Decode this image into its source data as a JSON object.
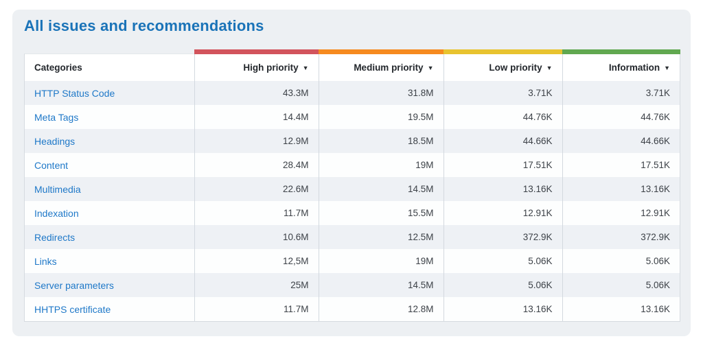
{
  "page": {
    "title": "All issues and recommendations"
  },
  "table": {
    "columns": [
      {
        "label": "Categories",
        "sortable": false,
        "color": null
      },
      {
        "label": "High priority",
        "sortable": true,
        "color": "#d2545c"
      },
      {
        "label": "Medium priority",
        "sortable": true,
        "color": "#f68a1f"
      },
      {
        "label": "Low priority",
        "sortable": true,
        "color": "#e8c32f"
      },
      {
        "label": "Information",
        "sortable": true,
        "color": "#61a850"
      }
    ],
    "sort_icon": "▼",
    "rows": [
      {
        "category": "HTTP Status Code",
        "values": [
          "43.3M",
          "31.8M",
          "3.71K",
          "3.71K"
        ]
      },
      {
        "category": "Meta Tags",
        "values": [
          "14.4M",
          "19.5M",
          "44.76K",
          "44.76K"
        ]
      },
      {
        "category": "Headings",
        "values": [
          "12.9M",
          "18.5M",
          "44.66K",
          "44.66K"
        ]
      },
      {
        "category": "Content",
        "values": [
          "28.4M",
          "19M",
          "17.51K",
          "17.51K"
        ]
      },
      {
        "category": "Multimedia",
        "values": [
          "22.6M",
          "14.5M",
          "13.16K",
          "13.16K"
        ]
      },
      {
        "category": "Indexation",
        "values": [
          "11.7M",
          "15.5M",
          "12.91K",
          "12.91K"
        ]
      },
      {
        "category": "Redirects",
        "values": [
          "10.6M",
          "12.5M",
          "372.9K",
          "372.9K"
        ]
      },
      {
        "category": "Links",
        "values": [
          "12,5M",
          "19M",
          "5.06K",
          "5.06K"
        ]
      },
      {
        "category": "Server parameters",
        "values": [
          "25M",
          "14.5M",
          "5.06K",
          "5.06K"
        ]
      },
      {
        "category": "HHTPS certificate",
        "values": [
          "11.7M",
          "12.8M",
          "13.16K",
          "13.16K"
        ]
      }
    ]
  }
}
